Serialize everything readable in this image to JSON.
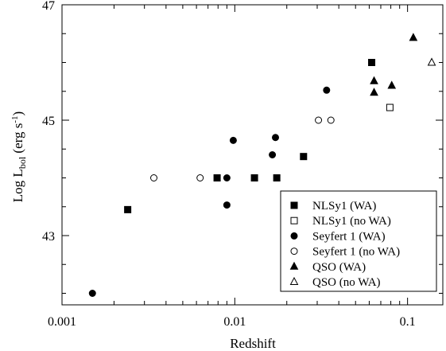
{
  "chart_data": {
    "type": "scatter",
    "xlabel": "Redshift",
    "ylabel": {
      "main": "Log L",
      "sub": "bol",
      "unit_open": " (erg s",
      "unit_sup": "-1",
      "unit_close": ")"
    },
    "xscale": "log",
    "xlim": [
      0.001,
      0.16
    ],
    "ylim": [
      41.8,
      47
    ],
    "x_major_ticks": [
      0.001,
      0.01,
      0.1
    ],
    "x_tick_labels": [
      "0.001",
      "0.01",
      "0.1"
    ],
    "y_major_ticks": [
      43,
      45,
      47
    ],
    "y_tick_labels": [
      "43",
      "45",
      "47"
    ],
    "y_minor_step": 0.5,
    "grid": false,
    "legend_position": "bottom-right",
    "series": [
      {
        "name": "NLSy1 (WA)",
        "marker": "square",
        "filled": true,
        "points": [
          [
            0.0024,
            43.45
          ],
          [
            0.0079,
            44.0
          ],
          [
            0.013,
            44.0
          ],
          [
            0.0175,
            44.0
          ],
          [
            0.025,
            44.37
          ],
          [
            0.062,
            46.0
          ]
        ]
      },
      {
        "name": "NLSy1 (no WA)",
        "marker": "square",
        "filled": false,
        "points": [
          [
            0.079,
            45.22
          ]
        ]
      },
      {
        "name": "Seyfert 1 (WA)",
        "marker": "circle",
        "filled": true,
        "points": [
          [
            0.0015,
            42.0
          ],
          [
            0.009,
            44.0
          ],
          [
            0.009,
            43.53
          ],
          [
            0.0098,
            44.65
          ],
          [
            0.0165,
            44.4
          ],
          [
            0.0172,
            44.7
          ],
          [
            0.034,
            45.52
          ]
        ]
      },
      {
        "name": "Seyfert 1 (no WA)",
        "marker": "circle",
        "filled": false,
        "points": [
          [
            0.0034,
            44.0
          ],
          [
            0.0063,
            44.0
          ],
          [
            0.0305,
            45.0
          ],
          [
            0.036,
            45.0
          ]
        ]
      },
      {
        "name": "QSO (WA)",
        "marker": "triangle",
        "filled": true,
        "points": [
          [
            0.064,
            45.48
          ],
          [
            0.064,
            45.68
          ],
          [
            0.081,
            45.6
          ],
          [
            0.108,
            46.43
          ]
        ]
      },
      {
        "name": "QSO (no WA)",
        "marker": "triangle",
        "filled": false,
        "points": [
          [
            0.138,
            46.0
          ]
        ]
      }
    ]
  }
}
